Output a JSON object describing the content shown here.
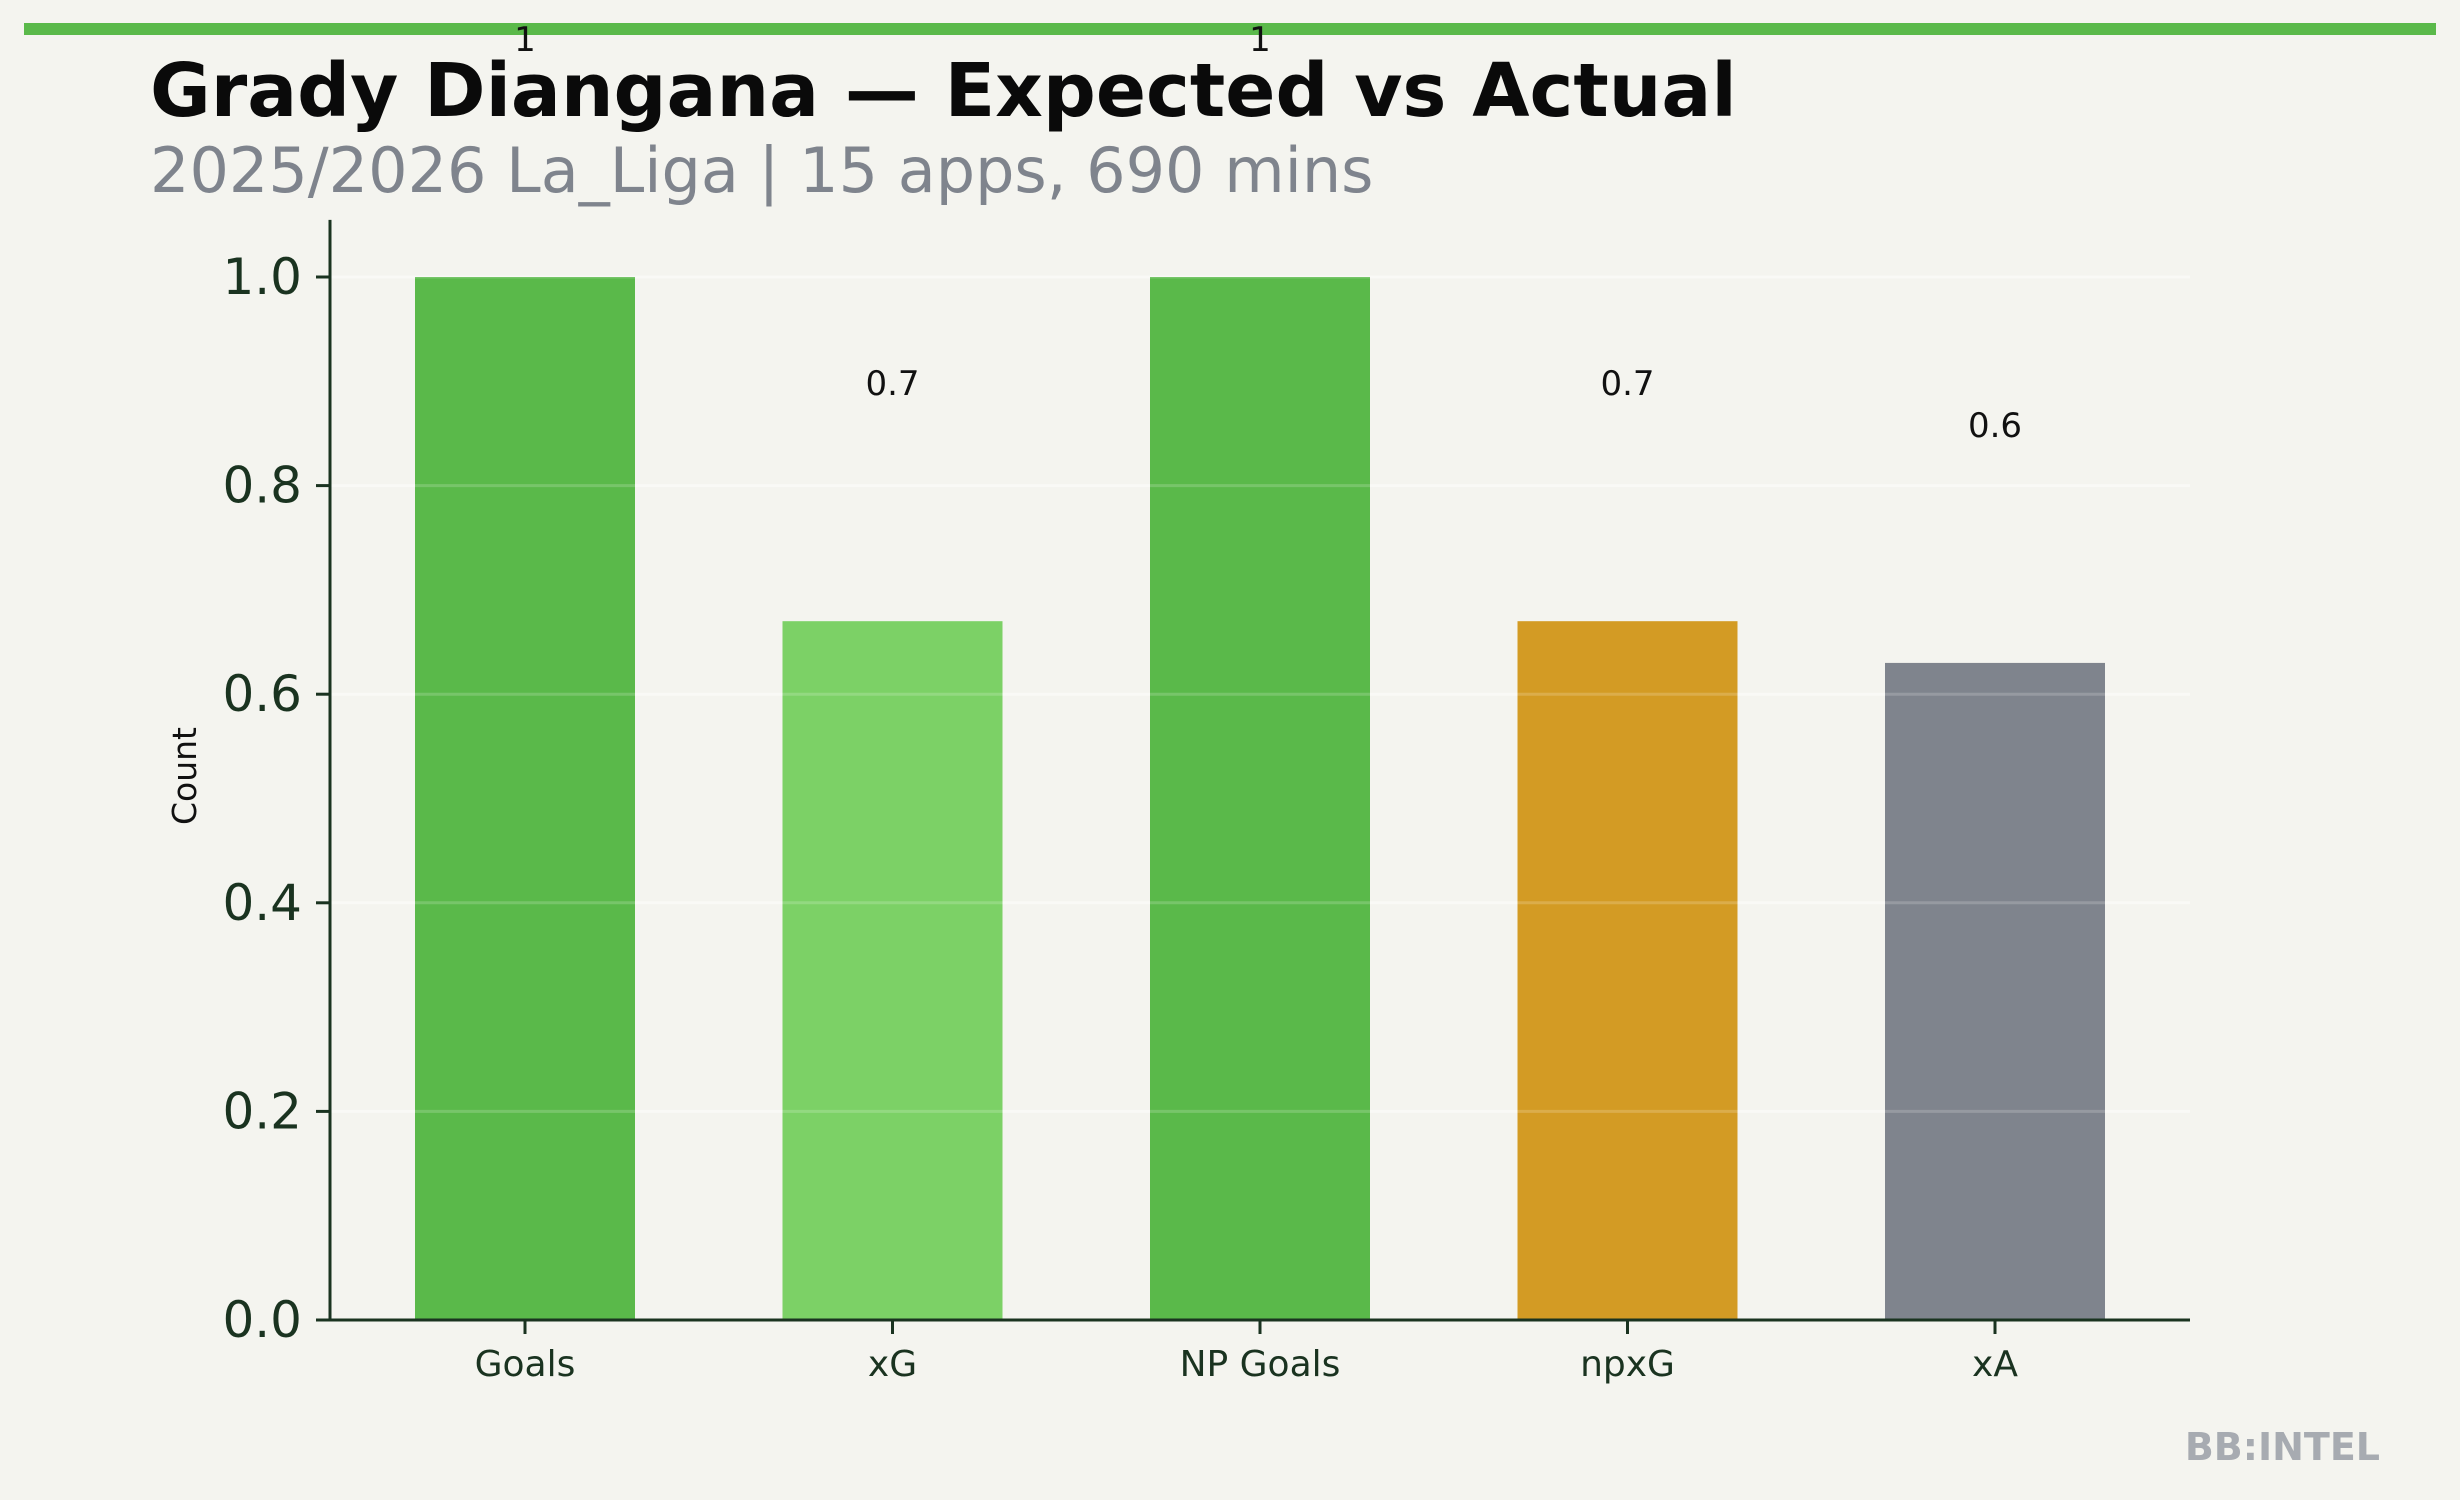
{
  "title": "Grady Diangana — Expected vs Actual",
  "subtitle": "2025/2026 La_Liga | 15 apps, 690 mins",
  "watermark": "BB:INTEL",
  "colors": {
    "background": "#f4f4ef",
    "accent": "#5ab94a",
    "axis": "#1a3320",
    "goals": "#5ab94a",
    "xg": "#7cd166",
    "np_goals": "#5ab94a",
    "npxg": "#d39b24",
    "xa": "#7f848d",
    "subtitle": "#7f848d",
    "watermark": "#a7abb1"
  },
  "chart_data": {
    "type": "bar",
    "categories": [
      "Goals",
      "xG",
      "NP Goals",
      "npxG",
      "xA"
    ],
    "values": [
      1,
      0.67,
      1,
      0.67,
      0.63
    ],
    "value_labels": [
      "1",
      "0.7",
      "1",
      "0.7",
      "0.6"
    ],
    "bar_colors": [
      "#5ab94a",
      "#7cd166",
      "#5ab94a",
      "#d39b24",
      "#7f848d"
    ],
    "xlabel": "",
    "ylabel": "Count",
    "ylim": [
      0,
      1.05
    ],
    "yticks": [
      0.0,
      0.2,
      0.4,
      0.6,
      0.8,
      1.0
    ],
    "ytick_labels": [
      "0.0",
      "0.2",
      "0.4",
      "0.6",
      "0.8",
      "1.0"
    ],
    "grid": true,
    "legend": "none"
  }
}
